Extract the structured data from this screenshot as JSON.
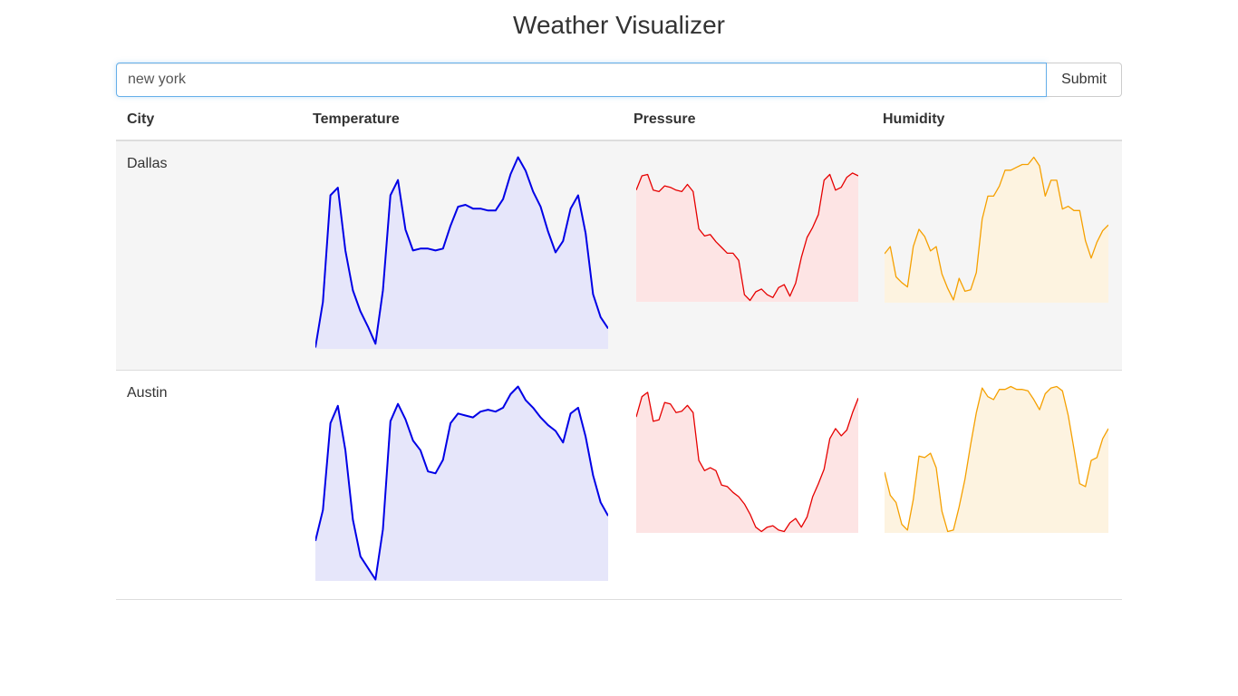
{
  "page": {
    "title": "Weather Visualizer"
  },
  "search": {
    "value": "new york",
    "placeholder": "",
    "submit_label": "Submit"
  },
  "table": {
    "headers": {
      "city": "City",
      "temperature": "Temperature",
      "pressure": "Pressure",
      "humidity": "Humidity"
    }
  },
  "colors": {
    "temperature_line": "#0000e6",
    "temperature_fill": "#e6e6fa",
    "pressure_line": "#e60000",
    "pressure_fill": "#fde4e4",
    "humidity_line": "#f5a000",
    "humidity_fill": "#fdf3e0"
  },
  "rows": [
    {
      "city": "Dallas",
      "temperature": [
        0,
        24,
        80,
        84,
        51,
        30,
        19,
        11,
        2,
        30,
        80,
        88,
        62,
        51,
        52,
        52,
        51,
        52,
        64,
        74,
        75,
        73,
        73,
        72,
        72,
        78,
        91,
        100,
        93,
        82,
        74,
        61,
        50,
        56,
        73,
        80,
        60,
        28,
        16,
        10
      ],
      "pressure": [
        77,
        87,
        88,
        77,
        76,
        80,
        79,
        77,
        76,
        81,
        76,
        50,
        45,
        46,
        41,
        37,
        33,
        33,
        28,
        4,
        0,
        6,
        8,
        4,
        2,
        9,
        11,
        3,
        12,
        30,
        44,
        51,
        60,
        84,
        88,
        77,
        79,
        86,
        89,
        87
      ],
      "humidity": [
        33,
        38,
        17,
        13,
        10,
        38,
        50,
        45,
        35,
        38,
        19,
        9,
        1,
        16,
        7,
        8,
        20,
        57,
        73,
        73,
        80,
        91,
        91,
        93,
        95,
        95,
        100,
        94,
        73,
        84,
        84,
        64,
        66,
        63,
        63,
        42,
        30,
        41,
        49,
        53
      ],
      "temperature_box": {
        "left": 220,
        "width": 323,
        "top": 16,
        "height": 213
      },
      "pressure_box": {
        "left": 574,
        "width": 245,
        "top": 16,
        "height": 161
      },
      "humidity_box": {
        "left": 848,
        "width": 247,
        "top": 16,
        "height": 162
      }
    },
    {
      "city": "Austin",
      "temperature": [
        20,
        36,
        81,
        90,
        67,
        31,
        12,
        6,
        0,
        26,
        82,
        91,
        83,
        72,
        67,
        56,
        55,
        62,
        81,
        86,
        85,
        84,
        87,
        88,
        87,
        89,
        96,
        100,
        93,
        89,
        84,
        80,
        77,
        71,
        86,
        89,
        74,
        54,
        40,
        33
      ],
      "pressure": [
        79,
        93,
        96,
        76,
        77,
        89,
        88,
        82,
        83,
        87,
        82,
        49,
        42,
        44,
        42,
        32,
        31,
        27,
        24,
        19,
        12,
        3,
        0,
        3,
        4,
        1,
        0,
        6,
        9,
        3,
        10,
        24,
        33,
        43,
        64,
        71,
        66,
        70,
        82,
        92
      ],
      "humidity": [
        41,
        25,
        20,
        5,
        1,
        22,
        52,
        51,
        54,
        44,
        14,
        0,
        1,
        17,
        36,
        60,
        82,
        99,
        93,
        91,
        98,
        98,
        100,
        98,
        98,
        97,
        91,
        84,
        95,
        99,
        100,
        97,
        80,
        57,
        33,
        31,
        49,
        51,
        64,
        71
      ],
      "temperature_box": {
        "left": 220,
        "width": 323,
        "top": 16,
        "height": 216
      },
      "pressure_box": {
        "left": 574,
        "width": 245,
        "top": 16,
        "height": 163
      },
      "humidity_box": {
        "left": 848,
        "width": 247,
        "top": 16,
        "height": 163
      }
    }
  ]
}
